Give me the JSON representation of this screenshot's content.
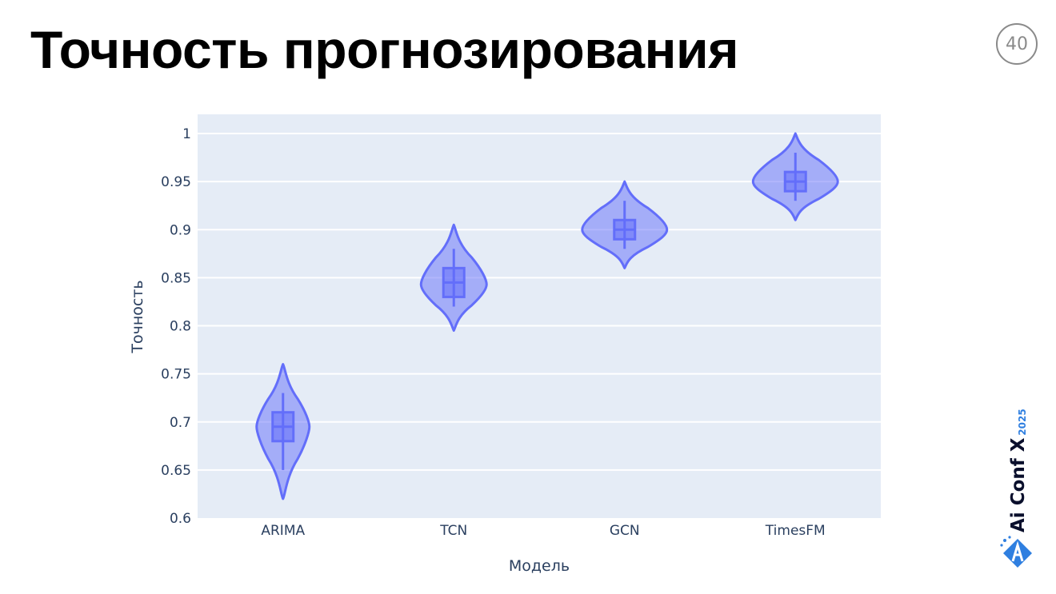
{
  "slide": {
    "title": "Точность прогнозирования",
    "page_number": "40"
  },
  "logo": {
    "brand": "Ai Conf X",
    "year": "2025",
    "colors": {
      "text": "#0a0f2c",
      "accent": "#2f7fe0"
    }
  },
  "chart_data": {
    "type": "violin",
    "title": "",
    "xlabel": "Модель",
    "ylabel": "Точность",
    "categories": [
      "ARIMA",
      "TCN",
      "GCN",
      "TimesFM"
    ],
    "ylim": [
      0.6,
      1.0
    ],
    "yticks": [
      "0.6",
      "0.65",
      "0.7",
      "0.75",
      "0.8",
      "0.85",
      "0.9",
      "0.95",
      "1"
    ],
    "grid": true,
    "legend": "none",
    "colors": {
      "fill": "#636efa",
      "plot_bg": "#e5ecf6",
      "grid": "#ffffff"
    },
    "series": [
      {
        "name": "ARIMA",
        "violin_min": 0.62,
        "violin_max": 0.76,
        "whisker_low": 0.65,
        "q1": 0.68,
        "median": 0.695,
        "q3": 0.71,
        "whisker_high": 0.73,
        "peak": 0.695
      },
      {
        "name": "TCN",
        "violin_min": 0.795,
        "violin_max": 0.905,
        "whisker_low": 0.82,
        "q1": 0.83,
        "median": 0.845,
        "q3": 0.86,
        "whisker_high": 0.88,
        "peak": 0.843
      },
      {
        "name": "GCN",
        "violin_min": 0.86,
        "violin_max": 0.95,
        "whisker_low": 0.88,
        "q1": 0.89,
        "median": 0.9,
        "q3": 0.91,
        "whisker_high": 0.93,
        "peak": 0.9
      },
      {
        "name": "TimesFM",
        "violin_min": 0.91,
        "violin_max": 1.0,
        "whisker_low": 0.93,
        "q1": 0.94,
        "median": 0.95,
        "q3": 0.96,
        "whisker_high": 0.98,
        "peak": 0.95
      }
    ]
  }
}
